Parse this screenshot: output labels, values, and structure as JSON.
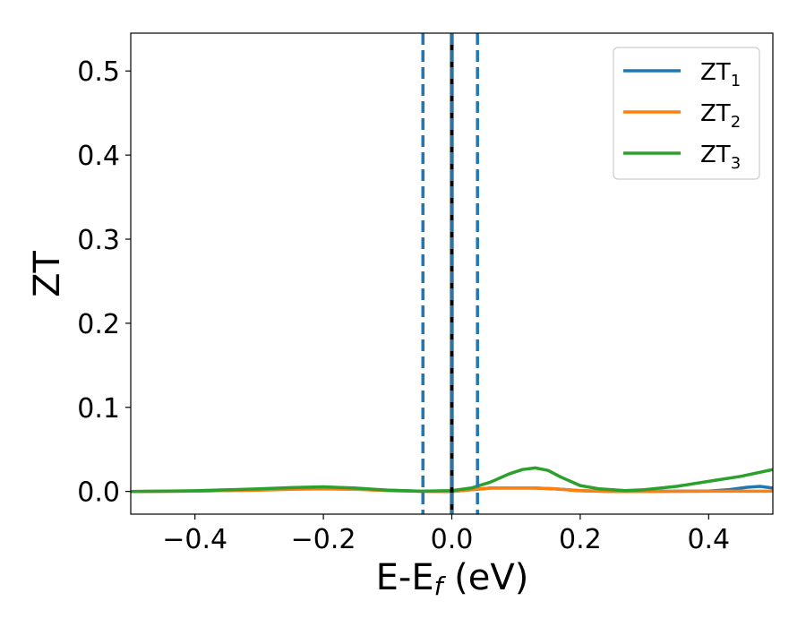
{
  "chart_data": {
    "type": "line",
    "xlabel": "E-E",
    "xlabel_sub": "f",
    "xlabel_unit": " (eV)",
    "ylabel": "ZT",
    "xlim": [
      -0.5,
      0.5
    ],
    "ylim": [
      -0.027,
      0.545
    ],
    "xticks": [
      -0.4,
      -0.2,
      0.0,
      0.2,
      0.4
    ],
    "xtick_labels": [
      "−0.4",
      "−0.2",
      "0.0",
      "0.2",
      "0.4"
    ],
    "yticks": [
      0.0,
      0.1,
      0.2,
      0.3,
      0.4,
      0.5
    ],
    "ytick_labels": [
      "0.0",
      "0.1",
      "0.2",
      "0.3",
      "0.4",
      "0.5"
    ],
    "grid": false,
    "legend_position": "top-right",
    "series": [
      {
        "name": "ZT",
        "sub": "1",
        "color": "#1f77b4",
        "x": [
          -0.5,
          -0.4,
          -0.3,
          -0.25,
          -0.2,
          -0.15,
          -0.1,
          -0.05,
          0.0,
          0.03,
          0.06,
          0.1,
          0.13,
          0.16,
          0.2,
          0.25,
          0.3,
          0.35,
          0.4,
          0.43,
          0.46,
          0.48,
          0.5
        ],
        "y": [
          0.0,
          0.0005,
          0.002,
          0.003,
          0.004,
          0.003,
          0.0015,
          0.0003,
          0.0,
          0.002,
          0.004,
          0.004,
          0.004,
          0.003,
          0.001,
          0.0,
          0.0,
          0.0003,
          0.0005,
          0.002,
          0.005,
          0.006,
          0.004
        ]
      },
      {
        "name": "ZT",
        "sub": "2",
        "color": "#ff7f0e",
        "x": [
          -0.5,
          -0.4,
          -0.3,
          -0.25,
          -0.2,
          -0.15,
          -0.1,
          -0.05,
          0.0,
          0.03,
          0.06,
          0.1,
          0.13,
          0.16,
          0.2,
          0.25,
          0.3,
          0.35,
          0.4,
          0.45,
          0.5
        ],
        "y": [
          0.0,
          0.0005,
          0.0015,
          0.0025,
          0.003,
          0.0025,
          0.001,
          0.0002,
          0.0,
          0.002,
          0.004,
          0.004,
          0.004,
          0.003,
          0.0008,
          0.0,
          0.0,
          0.0002,
          0.0003,
          0.0003,
          0.0003
        ]
      },
      {
        "name": "ZT",
        "sub": "3",
        "color": "#2ca02c",
        "x": [
          -0.5,
          -0.4,
          -0.3,
          -0.25,
          -0.2,
          -0.15,
          -0.1,
          -0.05,
          0.0,
          0.03,
          0.06,
          0.09,
          0.11,
          0.13,
          0.15,
          0.17,
          0.2,
          0.23,
          0.27,
          0.3,
          0.35,
          0.4,
          0.45,
          0.5
        ],
        "y": [
          0.0,
          0.0008,
          0.003,
          0.0045,
          0.0055,
          0.004,
          0.0015,
          0.0003,
          0.001,
          0.004,
          0.011,
          0.021,
          0.026,
          0.028,
          0.025,
          0.017,
          0.007,
          0.003,
          0.001,
          0.002,
          0.006,
          0.012,
          0.018,
          0.026
        ]
      }
    ],
    "vlines": [
      {
        "x": 0.0,
        "color": "#000000",
        "style": "solid"
      },
      {
        "x": -0.045,
        "color": "#1f77b4",
        "style": "dashed"
      },
      {
        "x": 0.0,
        "color": "#1f77b4",
        "style": "dashed"
      },
      {
        "x": 0.04,
        "color": "#1f77b4",
        "style": "dashed"
      }
    ]
  }
}
